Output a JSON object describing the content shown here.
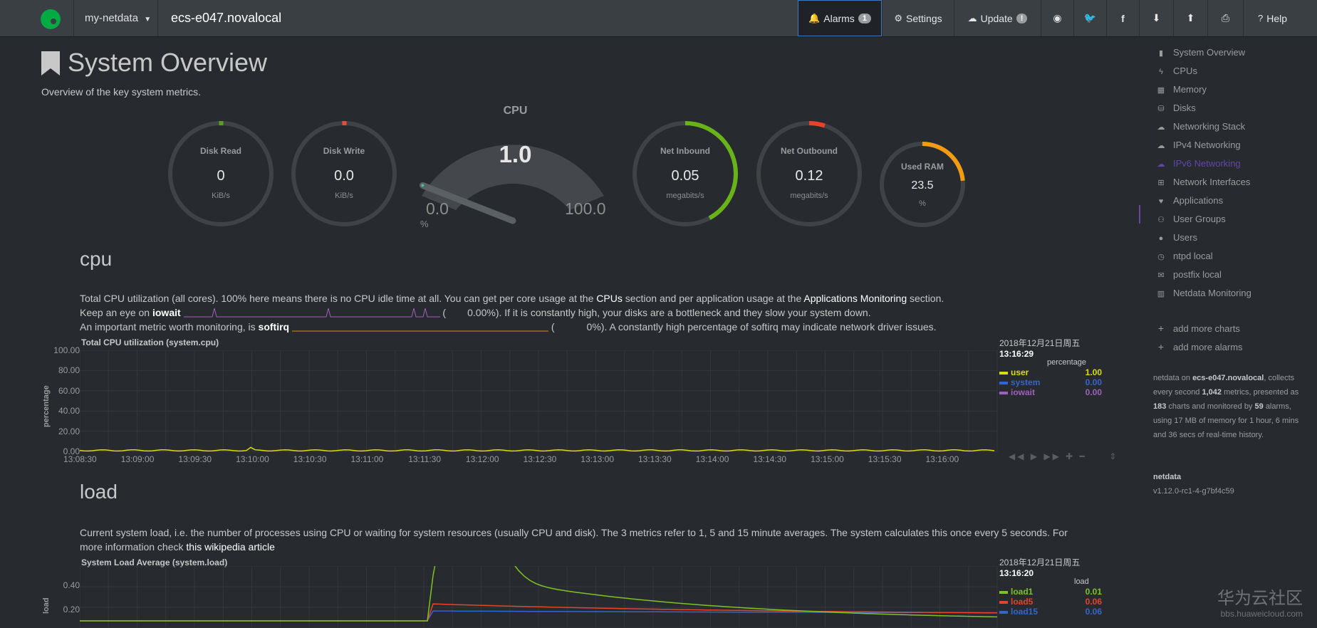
{
  "navbar": {
    "menu_label": "my-netdata",
    "hostname": "ecs-e047.novalocal",
    "alarms_label": "Alarms",
    "alarms_count": "1",
    "settings_label": "Settings",
    "update_label": "Update",
    "update_count": "!",
    "help_label": "Help"
  },
  "page": {
    "title": "System Overview",
    "subtitle": "Overview of the key system metrics."
  },
  "gauges": {
    "disk_read": {
      "title": "Disk Read",
      "value": "0",
      "unit": "KiB/s",
      "fraction": 0.01,
      "color": "#5e9e1d"
    },
    "disk_write": {
      "title": "Disk Write",
      "value": "0.0",
      "unit": "KiB/s",
      "fraction": 0.01,
      "color": "#e74c3c"
    },
    "cpu": {
      "title": "CPU",
      "value": "1.0",
      "min": "0.0",
      "max": "100.0",
      "unit": "%",
      "fraction": 0.01
    },
    "net_in": {
      "title": "Net Inbound",
      "value": "0.05",
      "unit": "megabits/s",
      "fraction": 0.42,
      "color": "#69b31a"
    },
    "net_out": {
      "title": "Net Outbound",
      "value": "0.12",
      "unit": "megabits/s",
      "fraction": 0.05,
      "color": "#e8412c"
    },
    "ram": {
      "title": "Used RAM",
      "value": "23.5",
      "unit": "%",
      "fraction": 0.235,
      "color": "#f39c12"
    }
  },
  "cpu_section": {
    "title": "cpu",
    "line1_a": "Total CPU utilization (all cores). 100% here means there is no CPU idle time at all. You can get per core usage at the",
    "line1_link1": "CPUs",
    "line1_b": "section and per application usage at the",
    "line1_link2": "Applications Monitoring",
    "line1_c": "section.",
    "line2_a": "Keep an eye on",
    "line2_bold": "iowait",
    "line2_val": "0.00%",
    "line2_b": "). If it is constantly high, your disks are a bottleneck and they slow your system down.",
    "line3_a": "An important metric worth monitoring, is",
    "line3_bold": "softirq",
    "line3_val": "0%",
    "line3_b": "). A constantly high percentage of softirq may indicate network driver issues.",
    "chart_title": "Total CPU utilization (system.cpu)",
    "ylabel": "percentage",
    "yticks": [
      "100.00",
      "80.00",
      "60.00",
      "40.00",
      "20.00",
      "0.00"
    ],
    "xticks": [
      "13:08:30",
      "13:09:00",
      "13:09:30",
      "13:10:00",
      "13:10:30",
      "13:11:00",
      "13:11:30",
      "13:12:00",
      "13:12:30",
      "13:13:00",
      "13:13:30",
      "13:14:00",
      "13:14:30",
      "13:15:00",
      "13:15:30",
      "13:16:00"
    ],
    "legend_date": "2018年12月21日周五",
    "legend_time": "13:16:29",
    "legend_unit": "percentage",
    "legend": [
      {
        "name": "user",
        "value": "1.00",
        "color": "#dddd00"
      },
      {
        "name": "system",
        "value": "0.00",
        "color": "#3366cc"
      },
      {
        "name": "iowait",
        "value": "0.00",
        "color": "#a05fbd"
      }
    ]
  },
  "load_section": {
    "title": "load",
    "line1": "Current system load, i.e. the number of processes using CPU or waiting for system resources (usually CPU and disk). The 3 metrics refer to 1, 5 and 15 minute averages. The system calculates this once every 5 seconds. For",
    "line2_a": "more information check",
    "line2_link": "this wikipedia article",
    "chart_title": "System Load Average (system.load)",
    "ylabel": "load",
    "yticks": [
      "0.40",
      "0.20"
    ],
    "legend_date": "2018年12月21日周五",
    "legend_time": "13:16:20",
    "legend_unit": "load",
    "legend": [
      {
        "name": "load1",
        "value": "0.01",
        "color": "#7dc320"
      },
      {
        "name": "load5",
        "value": "0.06",
        "color": "#e8412c"
      },
      {
        "name": "load15",
        "value": "0.06",
        "color": "#3366cc"
      }
    ]
  },
  "sidebar": {
    "items": [
      {
        "label": "System Overview",
        "icon": "bookmark-icon"
      },
      {
        "label": "CPUs",
        "icon": "bolt-icon"
      },
      {
        "label": "Memory",
        "icon": "microchip-icon"
      },
      {
        "label": "Disks",
        "icon": "database-icon"
      },
      {
        "label": "Networking Stack",
        "icon": "cloud-icon"
      },
      {
        "label": "IPv4 Networking",
        "icon": "cloud-icon"
      },
      {
        "label": "IPv6 Networking",
        "icon": "cloud-icon"
      },
      {
        "label": "Network Interfaces",
        "icon": "sitemap-icon"
      },
      {
        "label": "Applications",
        "icon": "heartbeat-icon"
      },
      {
        "label": "User Groups",
        "icon": "users-icon"
      },
      {
        "label": "Users",
        "icon": "user-icon"
      },
      {
        "label": "ntpd local",
        "icon": "clock-icon"
      },
      {
        "label": "postfix local",
        "icon": "envelope-icon"
      },
      {
        "label": "Netdata Monitoring",
        "icon": "chart-icon"
      }
    ],
    "add_charts": "add more charts",
    "add_alarms": "add more alarms",
    "info_1": "netdata on",
    "info_host": "ecs-e047.novalocal",
    "info_2": ", collects every second",
    "info_metrics": "1,042",
    "info_3": "metrics, presented as",
    "info_charts": "183",
    "info_4": "charts and monitored by",
    "info_alarms": "59",
    "info_5": "alarms, using 17 MB of memory for 1 hour, 6 mins and 36 secs of real-time history.",
    "version_label": "netdata",
    "version": "v1.12.0-rc1-4-g7bf4c59"
  },
  "watermark": {
    "text": "华为云社区",
    "url": "bbs.huaweicloud.com"
  }
}
